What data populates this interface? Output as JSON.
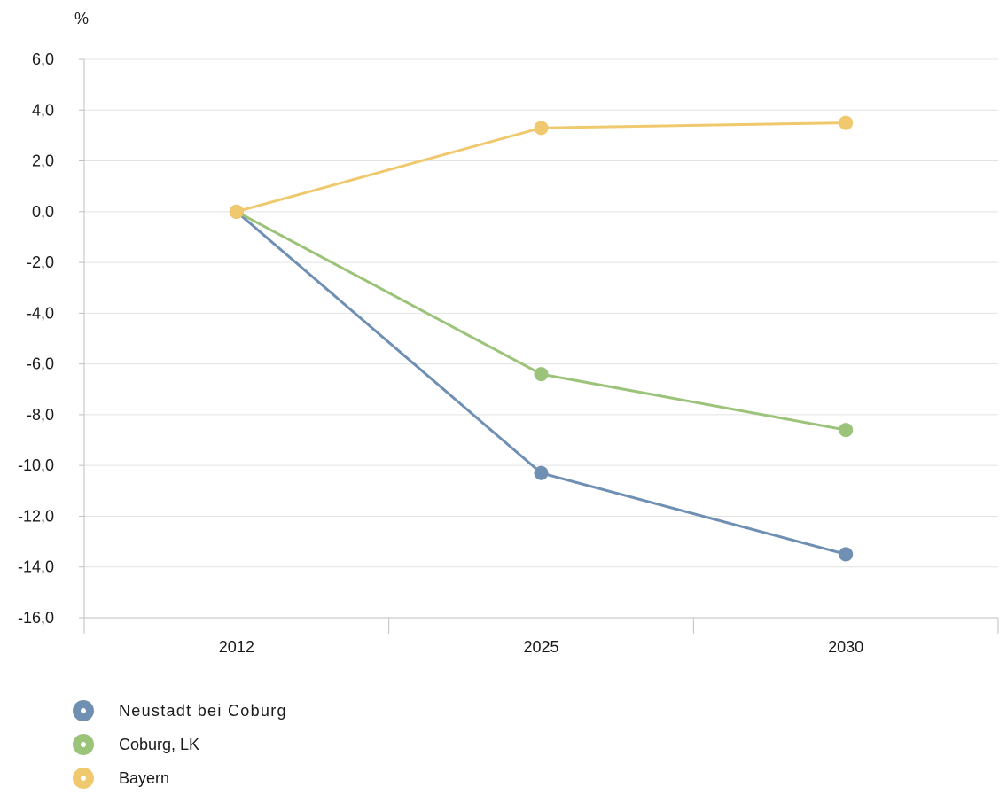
{
  "chart_data": {
    "type": "line",
    "unit_label": "%",
    "categories": [
      "2012",
      "2025",
      "2030"
    ],
    "ylim": [
      -16,
      6
    ],
    "yticks": [
      "6,0",
      "4,0",
      "2,0",
      "0,0",
      "-2,0",
      "-4,0",
      "-6,0",
      "-8,0",
      "-10,0",
      "-12,0",
      "-14,0",
      "-16,0"
    ],
    "ytick_values": [
      6,
      4,
      2,
      0,
      -2,
      -4,
      -6,
      -8,
      -10,
      -12,
      -14,
      -16
    ],
    "grid": true,
    "legend_position": "bottom-left",
    "series": [
      {
        "name": "Neustadt bei Coburg",
        "color": "#6f8fb3",
        "values": [
          0.0,
          -10.3,
          -13.5
        ]
      },
      {
        "name": "Coburg, LK",
        "color": "#9cc37a",
        "values": [
          0.0,
          -6.4,
          -8.6
        ]
      },
      {
        "name": "Bayern",
        "color": "#f0c96e",
        "values": [
          0.0,
          3.3,
          3.5
        ]
      }
    ]
  }
}
